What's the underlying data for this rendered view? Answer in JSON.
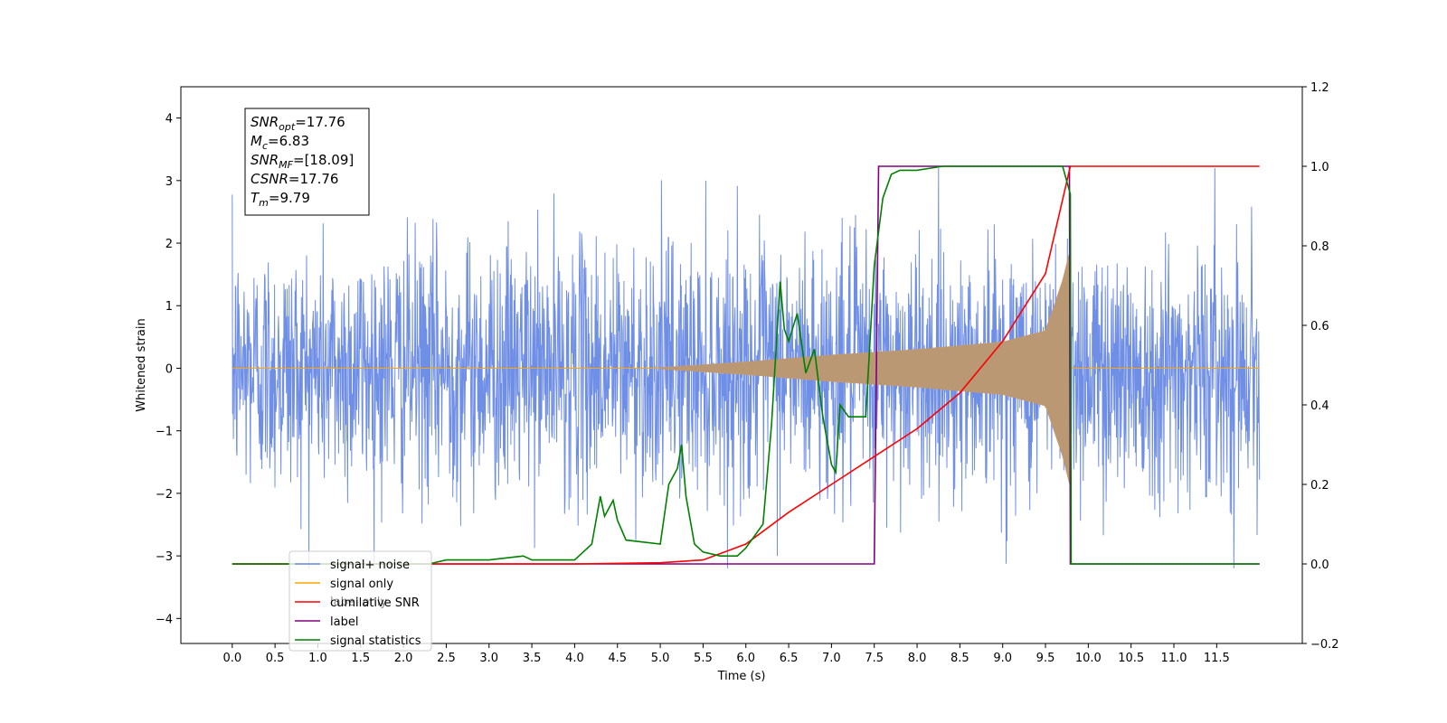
{
  "chart_data": {
    "type": "line",
    "xlabel": "Time (s)",
    "ylabel": "Whitened strain",
    "xlim": [
      -0.6,
      12.5
    ],
    "ylim": [
      -4.4,
      4.5
    ],
    "y2lim": [
      -0.2,
      1.2
    ],
    "x_ticks": [
      "0.0",
      "0.5",
      "1.0",
      "1.5",
      "2.0",
      "2.5",
      "3.0",
      "3.5",
      "4.0",
      "4.5",
      "5.0",
      "5.5",
      "6.0",
      "6.5",
      "7.0",
      "7.5",
      "8.0",
      "8.5",
      "9.0",
      "9.5",
      "10.0",
      "10.5",
      "11.0",
      "11.5"
    ],
    "y_ticks": [
      "4",
      "3",
      "2",
      "1",
      "0",
      "−1",
      "−2",
      "−3",
      "−4"
    ],
    "y2_ticks": [
      "1.2",
      "1.0",
      "0.8",
      "0.6",
      "0.4",
      "0.2",
      "0.0",
      "−0.2"
    ],
    "annotation": [
      {
        "base": "SNR",
        "sub": "opt",
        "rest": "=17.76"
      },
      {
        "base": "M",
        "sub": "c",
        "rest": "=6.83"
      },
      {
        "base": "SNR",
        "sub": "MF",
        "rest": "=[18.09]"
      },
      {
        "base": "CSNR",
        "sub": "",
        "rest": "=17.76"
      },
      {
        "base": "T",
        "sub": "m",
        "rest": "=9.79"
      }
    ],
    "legend": {
      "position": "lower-left",
      "entries": [
        "signal+ noise",
        "signal only",
        "cumilative SNR",
        "label",
        "signal statistics"
      ],
      "hidden_entries": [
        "signal only",
        "label only"
      ]
    },
    "colors": {
      "noise": "#6f8ee6",
      "signal": "#ffa500",
      "cumulative": "#ff0000",
      "label": "#800080",
      "stats": "#008000"
    },
    "series": [
      {
        "name": "signal+ noise",
        "axis": "left",
        "description_range": [
          0.0,
          12.0
        ]
      },
      {
        "name": "signal only",
        "axis": "left",
        "envelope": [
          [
            5.0,
            0.01
          ],
          [
            6.0,
            0.1
          ],
          [
            7.0,
            0.21
          ],
          [
            8.0,
            0.3
          ],
          [
            9.0,
            0.42
          ],
          [
            9.5,
            0.6
          ],
          [
            9.7,
            1.4
          ],
          [
            9.79,
            1.9
          ]
        ]
      },
      {
        "name": "cumilative SNR",
        "axis": "right",
        "x": [
          0.0,
          4.0,
          5.0,
          5.5,
          6.0,
          6.5,
          7.0,
          7.5,
          8.0,
          8.5,
          9.0,
          9.5,
          9.79,
          9.8,
          12.0
        ],
        "y": [
          0.0,
          0.0,
          0.003,
          0.01,
          0.05,
          0.13,
          0.2,
          0.27,
          0.34,
          0.43,
          0.56,
          0.73,
          1.0,
          1.0,
          1.0
        ]
      },
      {
        "name": "label",
        "axis": "right",
        "x": [
          0.0,
          7.5,
          7.55,
          9.78,
          9.79,
          12.0
        ],
        "y": [
          0.0,
          0.0,
          1.0,
          1.0,
          0.0,
          0.0
        ]
      },
      {
        "name": "signal statistics",
        "axis": "right",
        "x": [
          0.0,
          2.3,
          2.5,
          3.0,
          3.4,
          3.5,
          4.0,
          4.1,
          4.2,
          4.3,
          4.35,
          4.45,
          4.5,
          4.6,
          5.0,
          5.1,
          5.2,
          5.25,
          5.3,
          5.4,
          5.5,
          5.7,
          5.9,
          6.0,
          6.2,
          6.3,
          6.4,
          6.45,
          6.5,
          6.6,
          6.7,
          6.8,
          6.9,
          7.0,
          7.05,
          7.1,
          7.2,
          7.4,
          7.5,
          7.6,
          7.7,
          7.8,
          7.9,
          8.0,
          8.3,
          9.7,
          9.79,
          9.8,
          12.0
        ],
        "y": [
          0.0,
          0.0,
          0.01,
          0.01,
          0.02,
          0.01,
          0.01,
          0.03,
          0.05,
          0.17,
          0.12,
          0.16,
          0.11,
          0.06,
          0.05,
          0.2,
          0.24,
          0.3,
          0.17,
          0.05,
          0.03,
          0.02,
          0.02,
          0.04,
          0.1,
          0.35,
          0.71,
          0.59,
          0.56,
          0.63,
          0.48,
          0.54,
          0.37,
          0.25,
          0.23,
          0.4,
          0.37,
          0.37,
          0.75,
          0.92,
          0.98,
          0.99,
          0.99,
          0.99,
          1.0,
          1.0,
          0.93,
          0.0,
          0.0
        ]
      }
    ]
  }
}
